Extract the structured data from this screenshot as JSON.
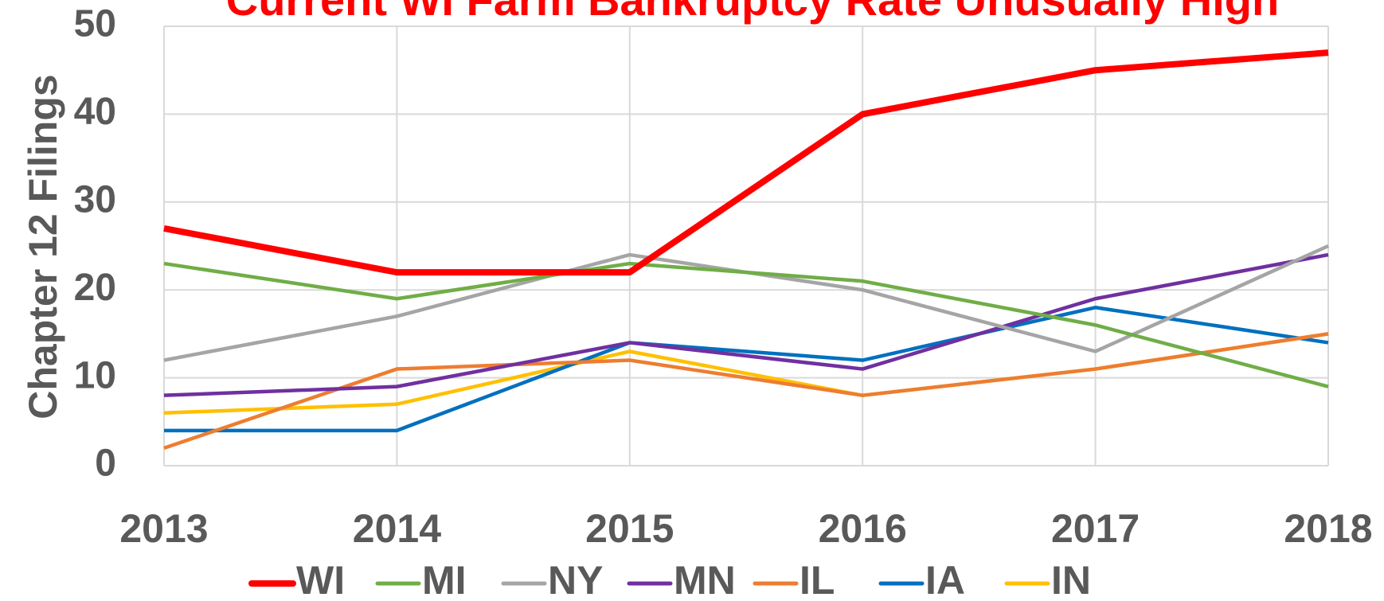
{
  "chart_data": {
    "type": "line",
    "title": "Current WI Farm Bankruptcy Rate Unusually High",
    "y_label": "Chapter 12 Filings",
    "categories": [
      "2013",
      "2014",
      "2015",
      "2016",
      "2017",
      "2018"
    ],
    "series": [
      {
        "name": "WI",
        "color": "#ff0000",
        "values": [
          27,
          22,
          22,
          40,
          45,
          47
        ]
      },
      {
        "name": "MI",
        "color": "#70ad47",
        "values": [
          23,
          19,
          23,
          21,
          16,
          9
        ]
      },
      {
        "name": "NY",
        "color": "#a5a5a5",
        "values": [
          12,
          17,
          24,
          20,
          13,
          25
        ]
      },
      {
        "name": "MN",
        "color": "#7030a0",
        "values": [
          8,
          9,
          14,
          11,
          19,
          24
        ]
      },
      {
        "name": "IL",
        "color": "#ed7d31",
        "values": [
          2,
          11,
          12,
          8,
          11,
          15
        ]
      },
      {
        "name": "IA",
        "color": "#0070c0",
        "values": [
          4,
          4,
          14,
          12,
          18,
          14
        ]
      },
      {
        "name": "IN",
        "color": "#ffc000",
        "values": [
          6,
          7,
          13,
          8,
          11,
          15
        ]
      }
    ],
    "ylim": [
      0,
      50
    ],
    "yticks": [
      0,
      10,
      20,
      30,
      40,
      50
    ],
    "grid": true,
    "legend": "bottom"
  }
}
